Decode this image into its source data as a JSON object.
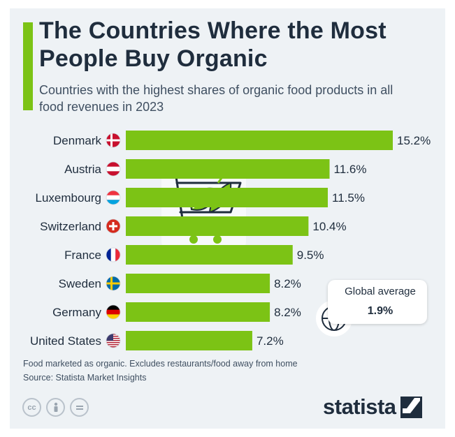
{
  "title": "The Countries Where the Most People Buy Organic",
  "subtitle": "Countries with the highest shares of organic food products in all food revenues in 2023",
  "notes": {
    "line1": "Food marketed as organic. Excludes restaurants/food away from home",
    "line2": "Source: Statista Market Insights"
  },
  "global_average": {
    "label": "Global average",
    "value": "1.9%"
  },
  "brand": "statista",
  "colors": {
    "bar": "#7cc315",
    "accent": "#7cc315",
    "text": "#1f2d3d",
    "background": "#eef2f5"
  },
  "icons": [
    "cart-icon",
    "leaf-icon",
    "globe-icon",
    "cc-icon",
    "person-icon",
    "equals-icon",
    "statista-logo-icon"
  ],
  "chart_data": {
    "type": "bar",
    "orientation": "horizontal",
    "categories": [
      "Denmark",
      "Austria",
      "Luxembourg",
      "Switzerland",
      "France",
      "Sweden",
      "Germany",
      "United States"
    ],
    "values": [
      15.2,
      11.6,
      11.5,
      10.4,
      9.5,
      8.2,
      8.2,
      7.2
    ],
    "value_labels": [
      "15.2%",
      "11.6%",
      "11.5%",
      "10.4%",
      "9.5%",
      "8.2%",
      "8.2%",
      "7.2%"
    ],
    "unit": "%",
    "xlim": [
      0,
      15.2
    ],
    "grid": false,
    "legend": "none"
  }
}
